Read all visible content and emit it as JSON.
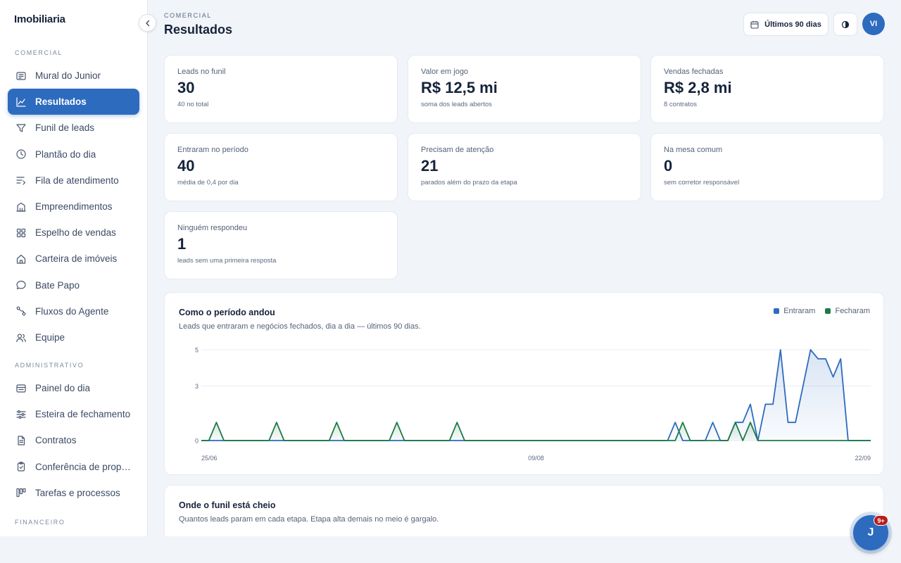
{
  "brand": "Imobiliaria",
  "sidebar": {
    "sections": [
      {
        "label": "COMERCIAL",
        "items": [
          {
            "label": "Mural do Junior",
            "icon": "newspaper-icon"
          },
          {
            "label": "Resultados",
            "icon": "line-chart-icon",
            "active": true
          },
          {
            "label": "Funil de leads",
            "icon": "funnel-icon"
          },
          {
            "label": "Plantão do dia",
            "icon": "clock-icon"
          },
          {
            "label": "Fila de atendimento",
            "icon": "queue-icon"
          },
          {
            "label": "Empreendimentos",
            "icon": "building-icon"
          },
          {
            "label": "Espelho de vendas",
            "icon": "grid-icon"
          },
          {
            "label": "Carteira de imóveis",
            "icon": "home-icon"
          },
          {
            "label": "Bate Papo",
            "icon": "chat-bubble-icon"
          },
          {
            "label": "Fluxos do Agente",
            "icon": "workflow-icon"
          },
          {
            "label": "Equipe",
            "icon": "users-icon"
          }
        ]
      },
      {
        "label": "ADMINISTRATIVO",
        "items": [
          {
            "label": "Painel do dia",
            "icon": "panel-icon"
          },
          {
            "label": "Esteira de fechamento",
            "icon": "sliders-icon"
          },
          {
            "label": "Contratos",
            "icon": "document-icon"
          },
          {
            "label": "Conferência de prop…",
            "icon": "clipboard-check-icon"
          },
          {
            "label": "Tarefas e processos",
            "icon": "kanban-icon"
          }
        ]
      },
      {
        "label": "FINANCEIRO",
        "items": []
      }
    ]
  },
  "header": {
    "eyebrow": "COMERCIAL",
    "title": "Resultados",
    "period_label": "Últimos 90 dias",
    "avatar_initials": "VI"
  },
  "kpis": [
    {
      "label": "Leads no funil",
      "value": "30",
      "sub": "40 no total"
    },
    {
      "label": "Valor em jogo",
      "value": "R$ 12,5 mi",
      "sub": "soma dos leads abertos"
    },
    {
      "label": "Vendas fechadas",
      "value": "R$ 2,8 mi",
      "sub": "8 contratos"
    },
    {
      "label": "Entraram no período",
      "value": "40",
      "sub": "média de 0,4 por dia"
    },
    {
      "label": "Precisam de atenção",
      "value": "21",
      "sub": "parados além do prazo da etapa"
    },
    {
      "label": "Na mesa comum",
      "value": "0",
      "sub": "sem corretor responsável"
    },
    {
      "label": "Ninguém respondeu",
      "value": "1",
      "sub": "leads sem uma primeira resposta"
    }
  ],
  "activity_chart": {
    "title": "Como o período andou",
    "subtitle": "Leads que entraram e negócios fechados, dia a dia — últimos 90 dias.",
    "legend": [
      {
        "name": "Entraram",
        "color": "#2d6bbf"
      },
      {
        "name": "Fecharam",
        "color": "#1e7a45"
      }
    ]
  },
  "chart_data": {
    "type": "area",
    "x_labels": [
      "25/06",
      "09/08",
      "22/09"
    ],
    "ylim": [
      0,
      5
    ],
    "y_ticks": [
      0,
      3,
      5
    ],
    "grid": true,
    "legend_placement": "top-right",
    "series": [
      {
        "name": "Entraram",
        "color": "#2d6bbf",
        "points": [
          [
            0,
            0
          ],
          [
            62,
            0
          ],
          [
            63,
            1
          ],
          [
            64,
            0
          ],
          [
            67,
            0
          ],
          [
            68,
            1
          ],
          [
            69,
            0
          ],
          [
            70,
            0
          ],
          [
            71,
            1
          ],
          [
            72,
            1
          ],
          [
            73,
            2
          ],
          [
            74,
            0
          ],
          [
            75,
            2
          ],
          [
            76,
            2
          ],
          [
            77,
            5
          ],
          [
            78,
            1
          ],
          [
            79,
            1
          ],
          [
            80,
            3
          ],
          [
            81,
            5
          ],
          [
            82,
            4.5
          ],
          [
            83,
            4.5
          ],
          [
            84,
            3.5
          ],
          [
            85,
            4.5
          ],
          [
            86,
            0
          ],
          [
            89,
            0
          ]
        ]
      },
      {
        "name": "Fecharam",
        "color": "#1e7a45",
        "points": [
          [
            0,
            0
          ],
          [
            1,
            0
          ],
          [
            2,
            1
          ],
          [
            3,
            0
          ],
          [
            9,
            0
          ],
          [
            10,
            1
          ],
          [
            11,
            0
          ],
          [
            17,
            0
          ],
          [
            18,
            1
          ],
          [
            19,
            0
          ],
          [
            25,
            0
          ],
          [
            26,
            1
          ],
          [
            27,
            0
          ],
          [
            33,
            0
          ],
          [
            34,
            1
          ],
          [
            35,
            0
          ],
          [
            63,
            0
          ],
          [
            64,
            1
          ],
          [
            65,
            0
          ],
          [
            70,
            0
          ],
          [
            71,
            1
          ],
          [
            72,
            0
          ],
          [
            73,
            1
          ],
          [
            74,
            0
          ],
          [
            89,
            0
          ]
        ]
      }
    ]
  },
  "funnel": {
    "title": "Onde o funil está cheio",
    "subtitle": "Quantos leads param em cada etapa. Etapa alta demais no meio é gargalo."
  },
  "chat": {
    "initial": "J",
    "badge": "9+"
  }
}
